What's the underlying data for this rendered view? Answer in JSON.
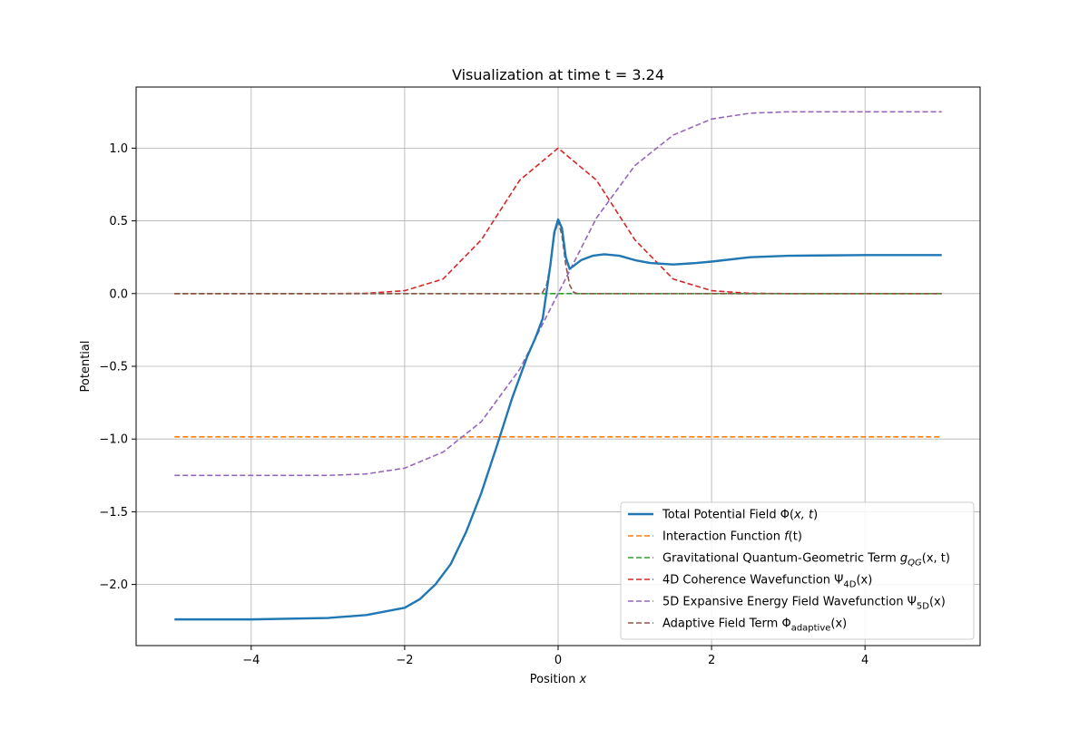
{
  "chart_data": {
    "type": "line",
    "title": "Visualization at time t = 3.24",
    "xlabel": "Position x",
    "ylabel": "Potential",
    "xlim": [
      -5.5,
      5.5
    ],
    "ylim": [
      -2.42,
      1.42
    ],
    "xticks": [
      -4,
      -2,
      0,
      2,
      4
    ],
    "yticks": [
      -2.0,
      -1.5,
      -1.0,
      -0.5,
      0.0,
      0.5,
      1.0
    ],
    "xtick_labels": [
      "−4",
      "−2",
      "0",
      "2",
      "4"
    ],
    "ytick_labels": [
      "−2.0",
      "−1.5",
      "−1.0",
      "−0.5",
      "0.0",
      "0.5",
      "1.0"
    ],
    "grid": true,
    "legend_position": "bottom-right",
    "series": [
      {
        "name": "Total Potential Field Φ(x, t)",
        "color": "#1f77b4",
        "style": "solid",
        "x": [
          -5.0,
          -4.0,
          -3.0,
          -2.5,
          -2.0,
          -1.8,
          -1.6,
          -1.4,
          -1.2,
          -1.0,
          -0.8,
          -0.6,
          -0.4,
          -0.3,
          -0.2,
          -0.1,
          -0.05,
          0.0,
          0.05,
          0.1,
          0.15,
          0.2,
          0.3,
          0.45,
          0.6,
          0.8,
          1.0,
          1.2,
          1.5,
          1.8,
          2.0,
          2.5,
          3.0,
          4.0,
          5.0
        ],
        "y": [
          -2.24,
          -2.24,
          -2.23,
          -2.21,
          -2.16,
          -2.1,
          -2.0,
          -1.86,
          -1.64,
          -1.37,
          -1.05,
          -0.72,
          -0.43,
          -0.31,
          -0.17,
          0.2,
          0.42,
          0.51,
          0.45,
          0.25,
          0.17,
          0.19,
          0.23,
          0.26,
          0.27,
          0.26,
          0.23,
          0.21,
          0.2,
          0.21,
          0.22,
          0.25,
          0.26,
          0.265,
          0.265
        ]
      },
      {
        "name": "Interaction Function f(t)",
        "color": "#ff7f0e",
        "style": "dashed",
        "x": [
          -5.0,
          5.0
        ],
        "y": [
          -0.985,
          -0.985
        ]
      },
      {
        "name": "Gravitational Quantum-Geometric Term g_QG(x, t)",
        "color": "#2ca02c",
        "style": "dashed",
        "x": [
          -5.0,
          5.0
        ],
        "y": [
          0.0,
          0.0
        ]
      },
      {
        "name": "4D Coherence Wavefunction Ψ_4D(x)",
        "color": "#d62728",
        "style": "dashed",
        "x": [
          -5.0,
          -3.0,
          -2.5,
          -2.0,
          -1.5,
          -1.0,
          -0.5,
          0.0,
          0.5,
          1.0,
          1.5,
          2.0,
          2.5,
          3.0,
          5.0
        ],
        "y": [
          0.0,
          0.0,
          0.002,
          0.02,
          0.1,
          0.37,
          0.78,
          1.0,
          0.78,
          0.37,
          0.1,
          0.02,
          0.002,
          0.0,
          0.0
        ]
      },
      {
        "name": "5D Expansive Energy Field Wavefunction Ψ_5D(x)",
        "color": "#9467bd",
        "style": "dashed",
        "x": [
          -5.0,
          -3.0,
          -2.5,
          -2.0,
          -1.5,
          -1.0,
          -0.5,
          0.0,
          0.5,
          1.0,
          1.5,
          2.0,
          2.5,
          3.0,
          5.0
        ],
        "y": [
          -1.25,
          -1.25,
          -1.24,
          -1.2,
          -1.09,
          -0.88,
          -0.52,
          0.0,
          0.52,
          0.88,
          1.09,
          1.2,
          1.24,
          1.25,
          1.25
        ]
      },
      {
        "name": "Adaptive Field Term Φ_adaptive(x)",
        "color": "#8c564b",
        "style": "dashed",
        "x": [
          -5.0,
          -0.25,
          -0.2,
          -0.15,
          -0.1,
          -0.05,
          0.0,
          0.05,
          0.1,
          0.15,
          0.2,
          0.25,
          5.0
        ],
        "y": [
          0.0,
          0.0,
          0.01,
          0.06,
          0.2,
          0.4,
          0.5,
          0.4,
          0.2,
          0.06,
          0.01,
          0.0,
          0.0
        ]
      }
    ]
  },
  "legend": {
    "items": [
      {
        "prefix": "Total Potential Field Φ(",
        "math": "x, t",
        "sub": "",
        "tail": ")"
      },
      {
        "prefix": "Interaction Function ",
        "math": "f",
        "sub": "",
        "tail": "(t)"
      },
      {
        "prefix": "Gravitational Quantum-Geometric Term ",
        "math": "g",
        "sub": "QG",
        "tail": "(x, t)"
      },
      {
        "prefix": "4D Coherence Wavefunction Ψ",
        "math": "",
        "sub": "4D",
        "tail": "(x)"
      },
      {
        "prefix": "5D Expansive Energy Field Wavefunction Ψ",
        "math": "",
        "sub": "5D",
        "tail": "(x)"
      },
      {
        "prefix": "Adaptive Field Term Φ",
        "math": "",
        "sub": "adaptive",
        "tail": "(x)"
      }
    ]
  },
  "xlabel_parts": {
    "text": "Position ",
    "math": "x"
  }
}
